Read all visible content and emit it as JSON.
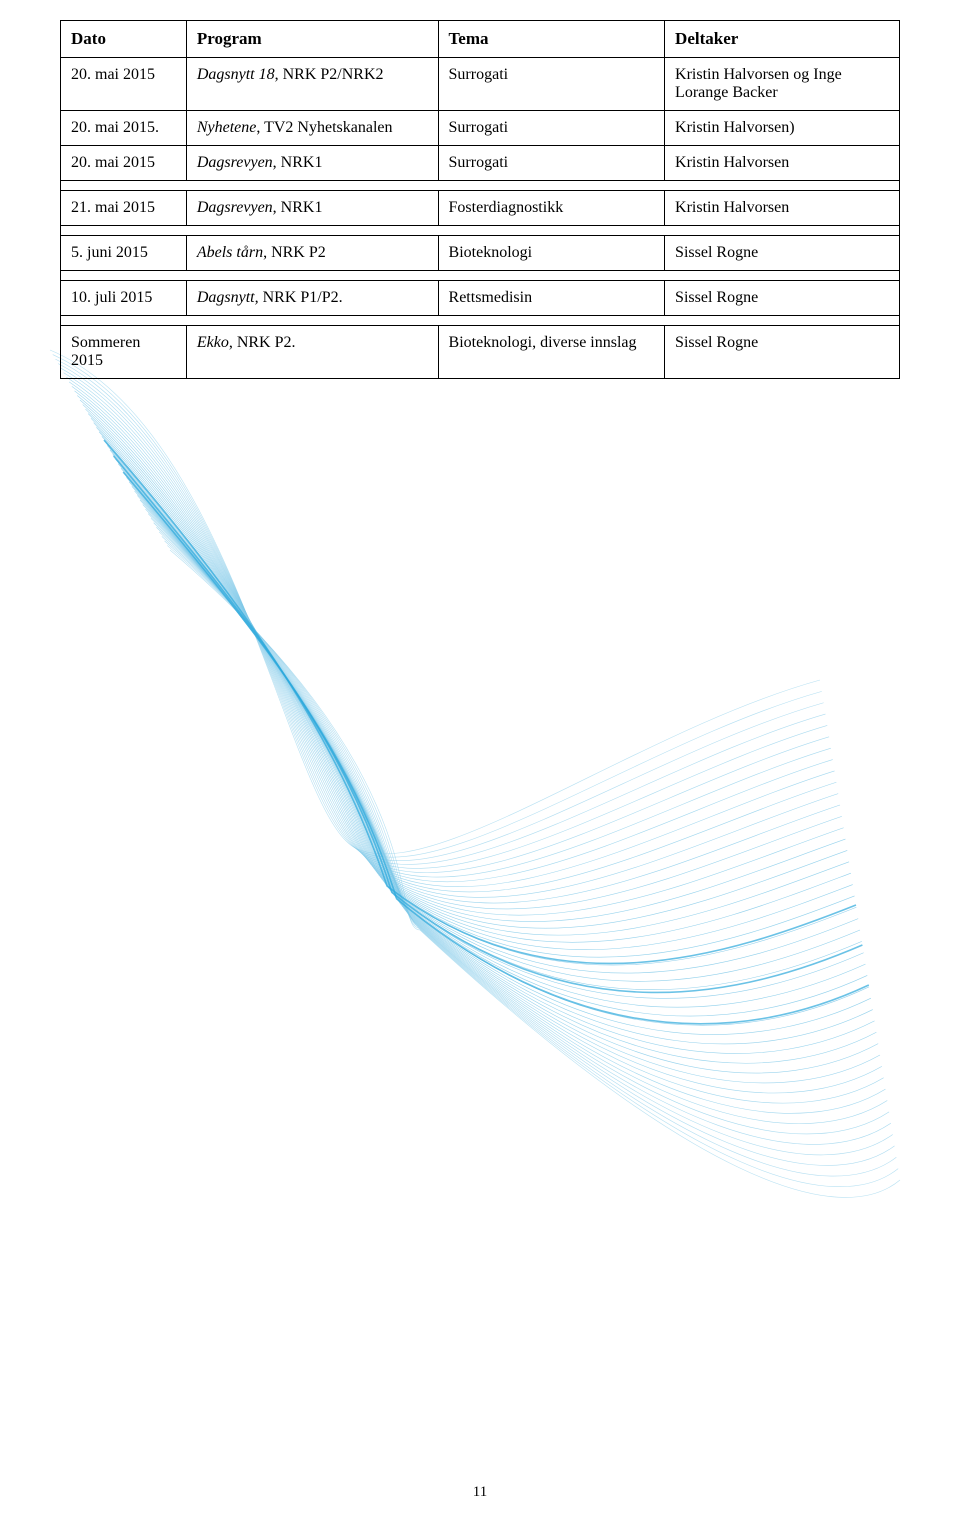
{
  "table": {
    "headers": [
      "Dato",
      "Program",
      "Tema",
      "Deltaker"
    ],
    "rows": [
      {
        "date": "20. mai 2015",
        "program_italic": "Dagsnytt 18",
        "program_rest": ", NRK P2/NRK2",
        "tema": "Surrogati",
        "deltaker": "Kristin Halvorsen og Inge Lorange Backer"
      },
      {
        "date": "20. mai 2015.",
        "program_italic": "Nyhetene",
        "program_rest": ", TV2 Nyhetskanalen",
        "tema": "Surrogati",
        "deltaker": "Kristin Halvorsen)"
      },
      {
        "date": "20. mai 2015",
        "program_italic": "Dagsrevyen",
        "program_rest": ", NRK1",
        "tema": "Surrogati",
        "deltaker": "Kristin Halvorsen"
      },
      {
        "date": "21. mai 2015",
        "program_italic": "Dagsrevyen",
        "program_rest": ", NRK1",
        "tema": "Fosterdiagnostikk",
        "deltaker": "Kristin Halvorsen"
      },
      {
        "date": "5. juni 2015",
        "program_italic": "Abels tårn",
        "program_rest": ", NRK P2",
        "tema": "Bioteknologi",
        "deltaker": "Sissel Rogne"
      },
      {
        "date": "10. juli 2015",
        "program_italic": "Dagsnytt,",
        "program_rest": " NRK P1/P2.",
        "tema": "Rettsmedisin",
        "deltaker": "Sissel Rogne"
      },
      {
        "date": "Sommeren 2015",
        "program_italic": "Ekko",
        "program_rest": ", NRK P2.",
        "tema": "Bioteknologi, diverse innslag",
        "deltaker": "Sissel Rogne"
      }
    ]
  },
  "page_number": "11",
  "wave": {
    "stroke_color": "#7ec8e8",
    "stroke_width": 0.6,
    "line_count": 45
  }
}
